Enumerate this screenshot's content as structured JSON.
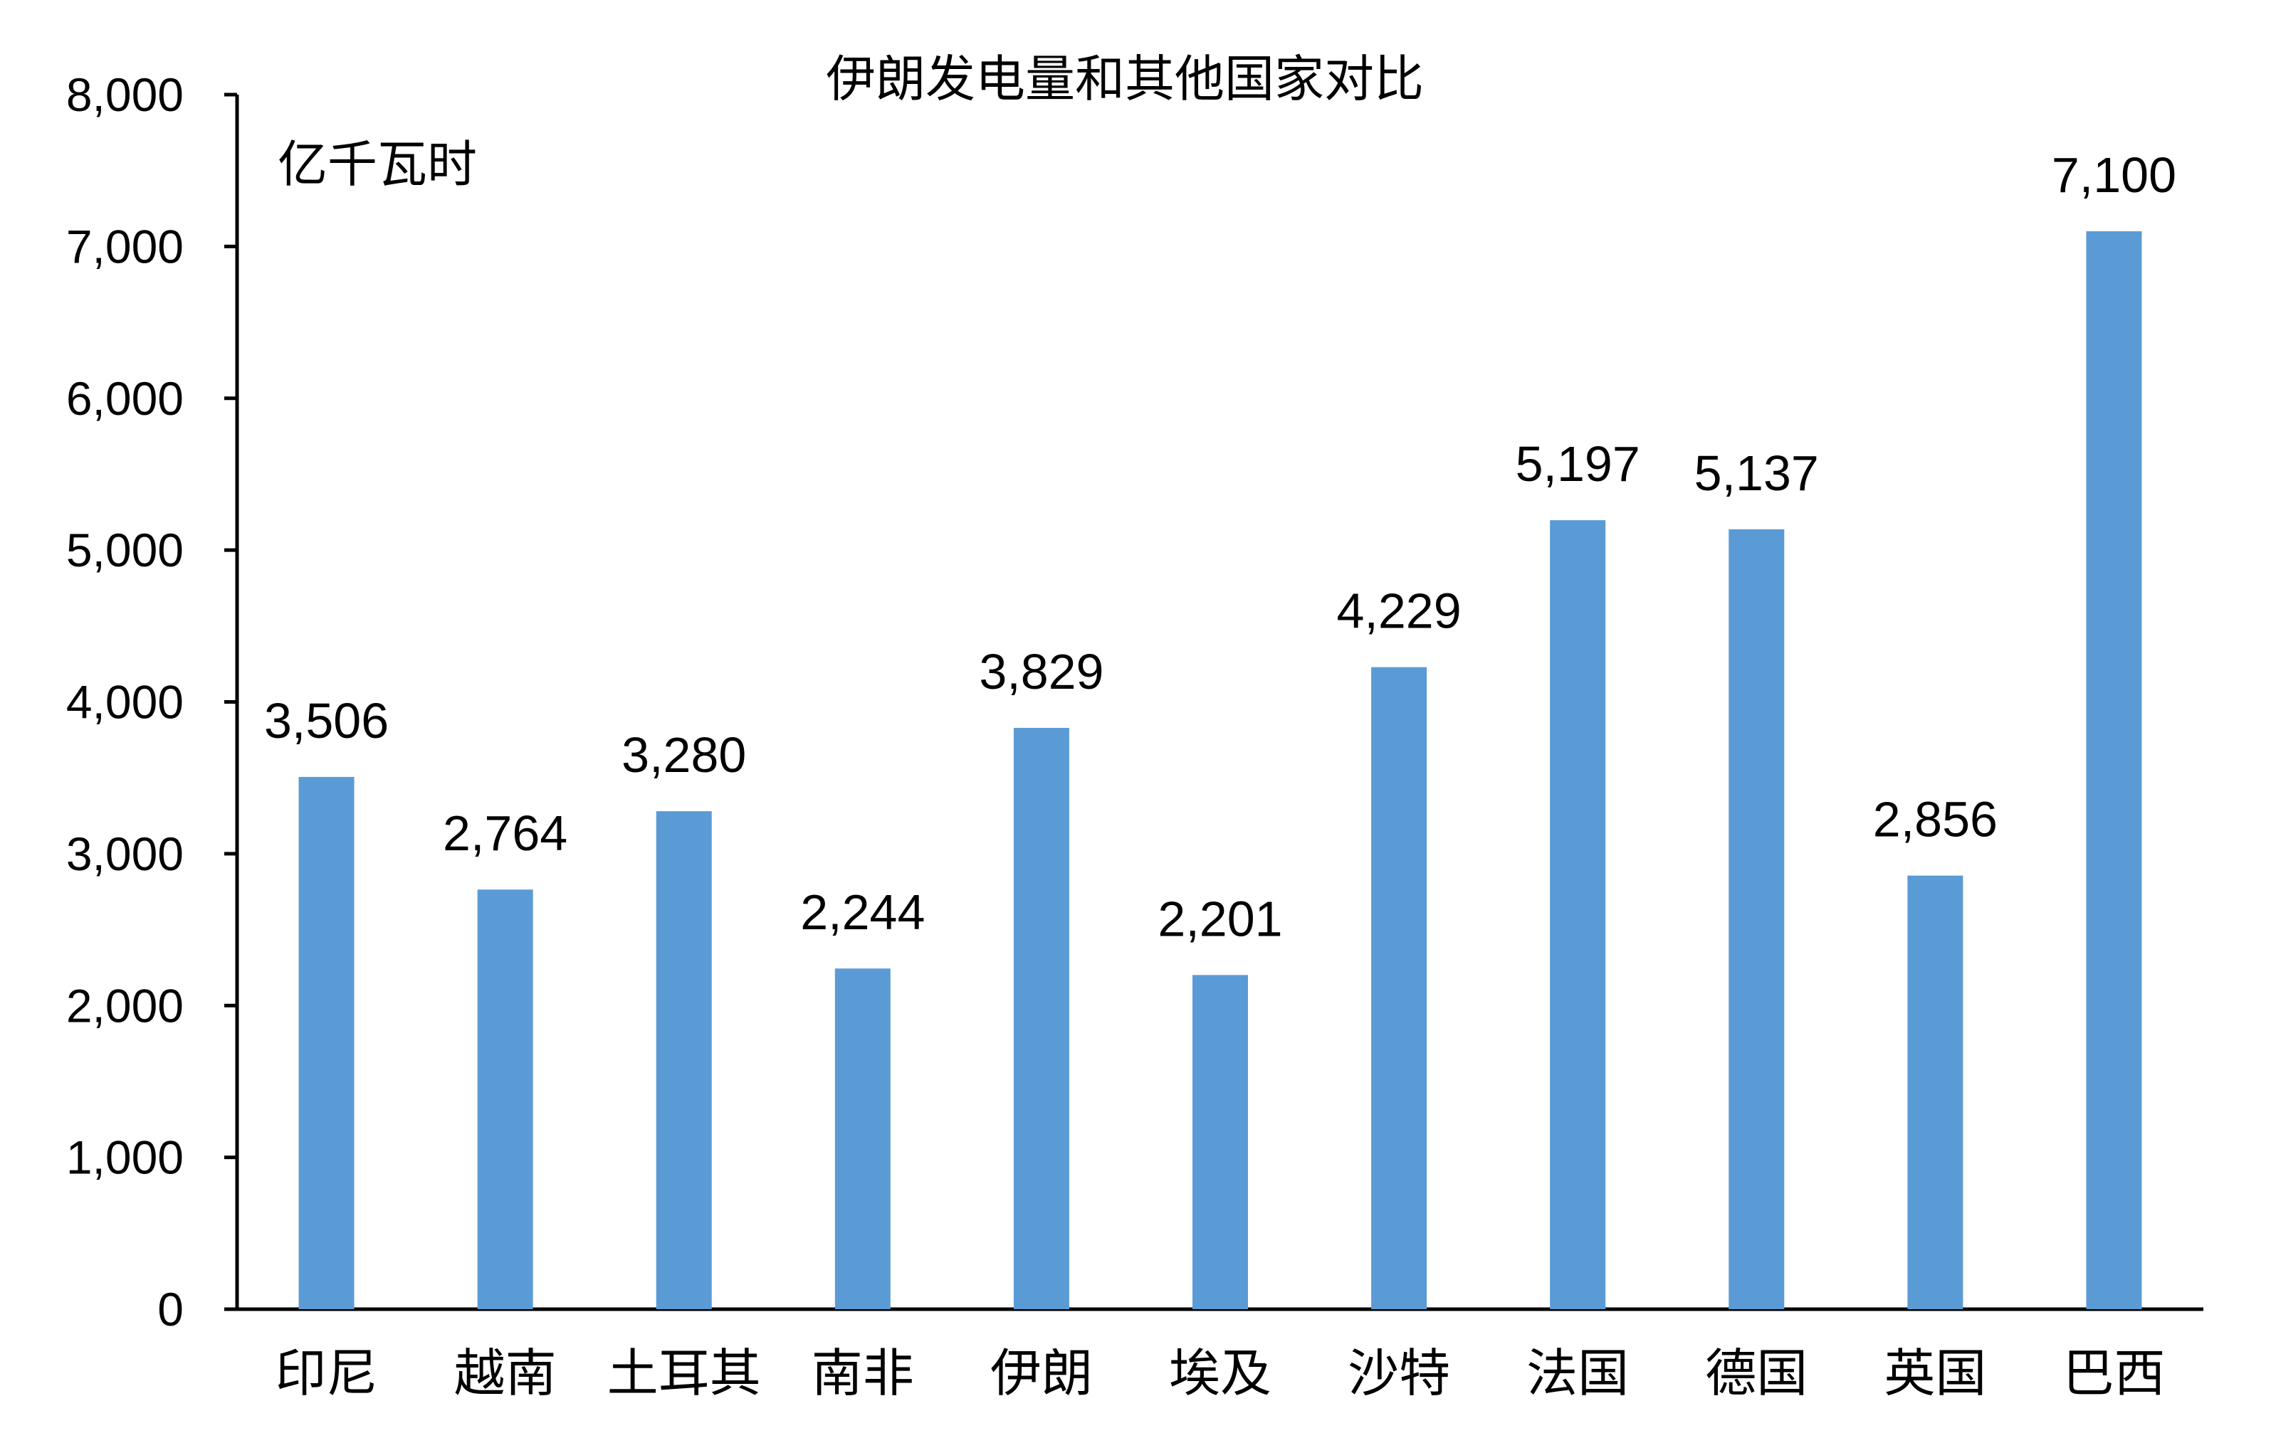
{
  "chart_data": {
    "type": "bar",
    "title": "伊朗发电量和其他国家对比",
    "ylabel": "亿千瓦时",
    "xlabel": "",
    "categories": [
      "印尼",
      "越南",
      "土耳其",
      "南非",
      "伊朗",
      "埃及",
      "沙特",
      "法国",
      "德国",
      "英国",
      "巴西"
    ],
    "values": [
      3506,
      2764,
      3280,
      2244,
      3829,
      2201,
      4229,
      5197,
      5137,
      2856,
      7100
    ],
    "value_labels": [
      "3,506",
      "2,764",
      "3,280",
      "2,244",
      "3,829",
      "2,201",
      "4,229",
      "5,197",
      "5,137",
      "2,856",
      "7,100"
    ],
    "ylim": [
      0,
      8000
    ],
    "yticks": [
      0,
      1000,
      2000,
      3000,
      4000,
      5000,
      6000,
      7000,
      8000
    ],
    "ytick_labels": [
      "0",
      "1,000",
      "2,000",
      "3,000",
      "4,000",
      "5,000",
      "6,000",
      "7,000",
      "8,000"
    ],
    "grid": false,
    "legend": "none",
    "bar_color": "#5b9bd5"
  }
}
